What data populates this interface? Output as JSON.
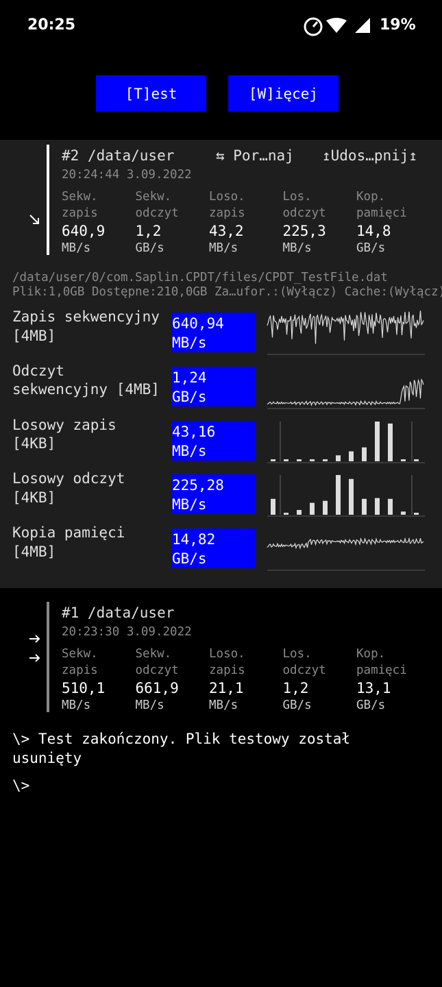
{
  "status_bar": {
    "time": "20:25",
    "battery": "19%"
  },
  "buttons": [
    "[T]est",
    "[W]ięcej"
  ],
  "results": [
    {
      "title": "#2 /data/user",
      "compare": "⇆ Por…naj",
      "share": "↥Udos…pnij↥",
      "date": "20:24:44 3.09.2022",
      "metrics": [
        {
          "label": "Sekw. zapis",
          "value": "640,9",
          "unit": "MB/s"
        },
        {
          "label": "Sekw. odczyt",
          "value": "1,2",
          "unit": "GB/s"
        },
        {
          "label": "Loso. zapis",
          "value": "43,2",
          "unit": "MB/s"
        },
        {
          "label": "Los. odczyt",
          "value": "225,3",
          "unit": "MB/s"
        },
        {
          "label": "Kop. pamięci",
          "value": "14,8",
          "unit": "GB/s"
        }
      ]
    },
    {
      "title": "#1 /data/user",
      "date": "20:23:30 3.09.2022",
      "metrics": [
        {
          "label": "Sekw. zapis",
          "value": "510,1",
          "unit": "MB/s"
        },
        {
          "label": "Sekw. odczyt",
          "value": "661,9",
          "unit": "MB/s"
        },
        {
          "label": "Loso. zapis",
          "value": "21,1",
          "unit": "MB/s"
        },
        {
          "label": "Los. odczyt",
          "value": "1,2",
          "unit": "GB/s"
        },
        {
          "label": "Kop. pamięci",
          "value": "13,1",
          "unit": "GB/s"
        }
      ]
    }
  ],
  "file": {
    "path": "/data/user/0/com.Saplin.CPDT/files/CPDT_TestFile.dat",
    "info": "Plik:1,0GB Dostępne:210,0GB Za…ufor.:(Wyłącz) Cache:(Wyłącz)"
  },
  "tests": [
    {
      "name": "Zapis sekwencyjny [4MB]",
      "value": "640,94",
      "unit": "MB/s"
    },
    {
      "name": "Odczyt sekwencyjny [4MB]",
      "value": "1,24",
      "unit": "GB/s"
    },
    {
      "name": "Losowy zapis [4KB]",
      "value": "43,16",
      "unit": "MB/s"
    },
    {
      "name": "Losowy odczyt [4KB]",
      "value": "225,28",
      "unit": "MB/s"
    },
    {
      "name": "Kopia pamięci [4MB]",
      "value": "14,82",
      "unit": "GB/s"
    }
  ],
  "console": [
    "\\> Test zakończony. Plik testowy został usunięty",
    "\\>"
  ]
}
